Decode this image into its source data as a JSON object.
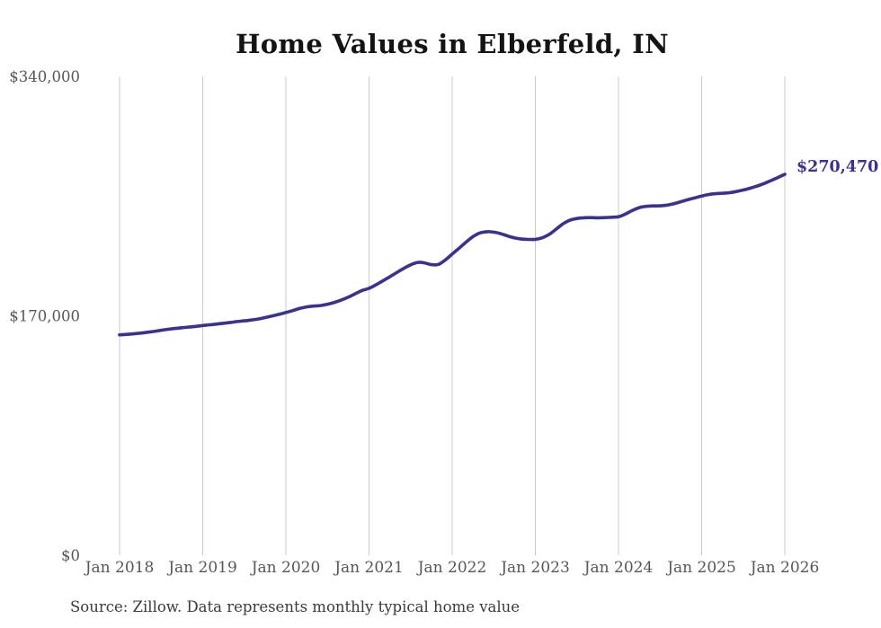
{
  "title": "Home Values in Elberfeld, IN",
  "end_label": "$270,470",
  "source_note": "Source: Zillow. Data represents monthly typical home value",
  "colors": {
    "line": "#3a3191",
    "grid": "#cbcbcb",
    "axis_text": "#56575a",
    "title_text": "#141414",
    "end_label_text": "#3a3191",
    "source_text": "#3b3b3b",
    "background": "#ffffff"
  },
  "chart_data": {
    "type": "line",
    "title": "Home Values in Elberfeld, IN",
    "xlabel": "",
    "ylabel": "",
    "ylim": [
      0,
      340000
    ],
    "grid": "vertical-only",
    "legend": "none",
    "frequency": "monthly",
    "x_start": "2018-01",
    "x_end": "2026-01",
    "x_tick_labels": [
      "Jan 2018",
      "Jan 2019",
      "Jan 2020",
      "Jan 2021",
      "Jan 2022",
      "Jan 2023",
      "Jan 2024",
      "Jan 2025",
      "Jan 2026"
    ],
    "y_ticks": [
      {
        "label": "$0",
        "value": 0
      },
      {
        "label": "$170,000",
        "value": 170000
      },
      {
        "label": "$340,000",
        "value": 340000
      }
    ],
    "end_value": 270470,
    "series": [
      {
        "name": "Typical home value",
        "values": [
          156500,
          156800,
          157200,
          157700,
          158300,
          158900,
          159700,
          160400,
          161000,
          161500,
          162000,
          162500,
          163100,
          163600,
          164100,
          164700,
          165300,
          165900,
          166400,
          167000,
          167700,
          168700,
          169800,
          171000,
          172300,
          173700,
          175200,
          176300,
          176900,
          177300,
          178200,
          179500,
          181200,
          183200,
          185600,
          188000,
          189500,
          192000,
          194800,
          197700,
          200700,
          203600,
          206200,
          207900,
          207600,
          206300,
          206500,
          209600,
          213800,
          218000,
          222300,
          226200,
          228800,
          229700,
          229400,
          228300,
          226700,
          225300,
          224500,
          224200,
          224300,
          225400,
          227800,
          231500,
          235300,
          237900,
          239100,
          239600,
          239700,
          239600,
          239700,
          240000,
          240300,
          242200,
          244800,
          246800,
          247700,
          248000,
          248100,
          248600,
          249600,
          251000,
          252400,
          253700,
          255000,
          256100,
          256700,
          257000,
          257400,
          258200,
          259300,
          260600,
          262100,
          263900,
          266000,
          268200,
          270470
        ]
      }
    ]
  }
}
